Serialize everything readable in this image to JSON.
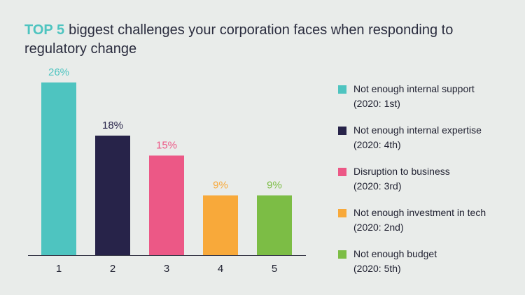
{
  "title": {
    "highlight": "TOP 5",
    "text": "biggest challenges your corporation faces when responding to regulatory change"
  },
  "chart_data": {
    "type": "bar",
    "title": "TOP 5 biggest challenges your corporation faces when responding to regulatory change",
    "categories": [
      "1",
      "2",
      "3",
      "4",
      "5"
    ],
    "values": [
      26,
      18,
      15,
      9,
      9
    ],
    "value_labels": [
      "26%",
      "18%",
      "15%",
      "9%",
      "9%"
    ],
    "colors": [
      "#4ec4c0",
      "#272349",
      "#ec5886",
      "#f8a93a",
      "#7cbd45"
    ],
    "ylim": [
      0,
      26
    ],
    "xlabel": "",
    "ylabel": "",
    "grid": false,
    "legend_position": "right"
  },
  "legend": [
    {
      "label": "Not enough internal support",
      "note": "(2020: 1st)",
      "color": "#4ec4c0"
    },
    {
      "label": "Not enough internal expertise",
      "note": "(2020: 4th)",
      "color": "#272349"
    },
    {
      "label": "Disruption to business",
      "note": "(2020: 3rd)",
      "color": "#ec5886"
    },
    {
      "label": "Not enough investment in tech",
      "note": "(2020: 2nd)",
      "color": "#f8a93a"
    },
    {
      "label": "Not enough budget",
      "note": "(2020: 5th)",
      "color": "#7cbd45"
    }
  ]
}
